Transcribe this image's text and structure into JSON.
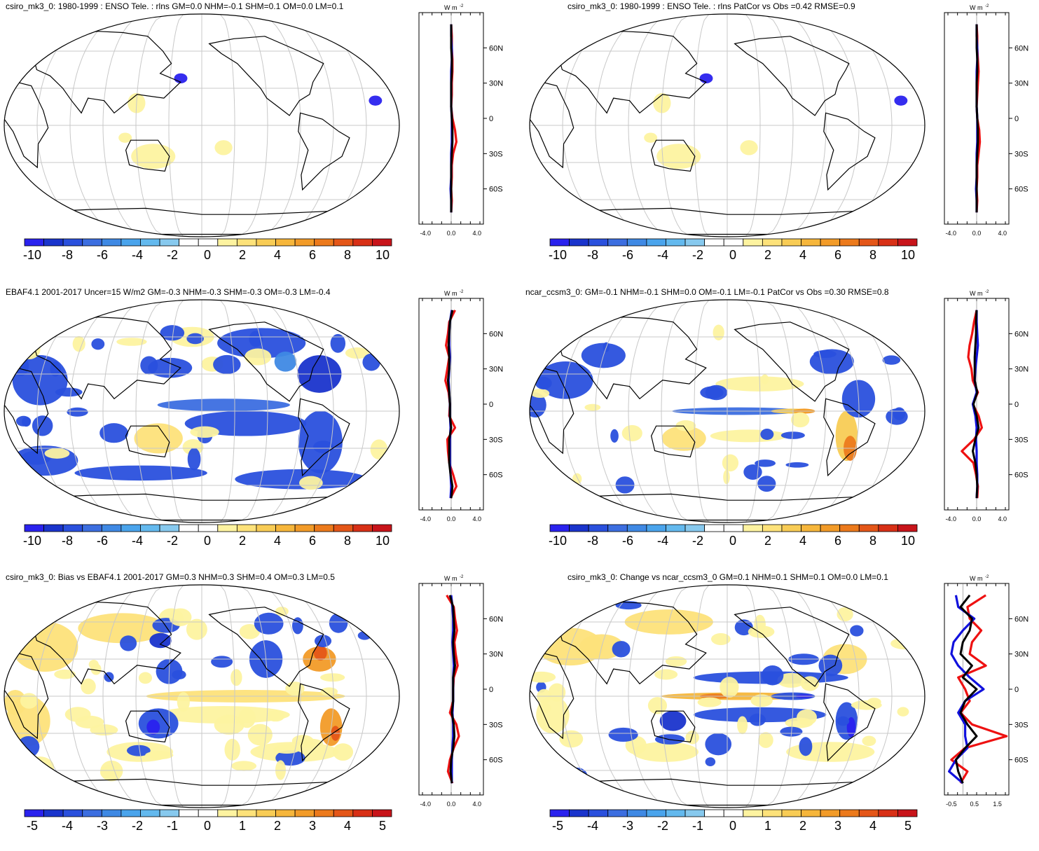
{
  "figure": {
    "zonal_unit": "W m",
    "zonal_unit_sup": "-2",
    "zonal_lat_ticks": [
      "60N",
      "30N",
      "0",
      "30S",
      "60S"
    ],
    "colors": {
      "coast": "#000000",
      "grid": "#c8c8c8",
      "obs_line": "#ee1111",
      "model_line": "#1111dd",
      "diff_line": "#000000"
    }
  },
  "panels": [
    {
      "title": "csiro_mk3_0: 1980-1999 : ENSO Tele. : rlns GM=0.0 NHM=-0.1 SHM=0.1 OM=0.0 LM=0.1",
      "colorbar": [
        "-10",
        "-8",
        "-6",
        "-4",
        "-2",
        "0",
        "2",
        "4",
        "6",
        "8",
        "10"
      ],
      "zonal_xticks": [
        "-4.0",
        "0.0",
        "4.0"
      ]
    },
    {
      "title": "csiro_mk3_0: 1980-1999 : ENSO Tele. : rlns PatCor vs Obs =0.42 RMSE=0.9",
      "colorbar": [
        "-10",
        "-8",
        "-6",
        "-4",
        "-2",
        "0",
        "2",
        "4",
        "6",
        "8",
        "10"
      ],
      "zonal_xticks": [
        "-4.0",
        "0.0",
        "4.0"
      ]
    },
    {
      "title": "EBAF4.1 2001-2017 Uncer=15 W/m2 GM=-0.3 NHM=-0.3 SHM=-0.3 OM=-0.3 LM=-0.4",
      "colorbar": [
        "-10",
        "-8",
        "-6",
        "-4",
        "-2",
        "0",
        "2",
        "4",
        "6",
        "8",
        "10"
      ],
      "zonal_xticks": [
        "-4.0",
        "0.0",
        "4.0"
      ]
    },
    {
      "title": "ncar_ccsm3_0: GM=-0.1 NHM=-0.1 SHM=0.0 OM=-0.1 LM=-0.1 PatCor vs Obs =0.30 RMSE=0.8",
      "colorbar": [
        "-10",
        "-8",
        "-6",
        "-4",
        "-2",
        "0",
        "2",
        "4",
        "6",
        "8",
        "10"
      ],
      "zonal_xticks": [
        "-4.0",
        "0.0",
        "4.0"
      ]
    },
    {
      "title": "csiro_mk3_0: Bias vs EBAF4.1 2001-2017 GM=0.3 NHM=0.3 SHM=0.4 OM=0.3 LM=0.5",
      "colorbar": [
        "-5",
        "-4",
        "-3",
        "-2",
        "-1",
        "0",
        "1",
        "2",
        "3",
        "4",
        "5"
      ],
      "zonal_xticks": [
        "-4.0",
        "0.0",
        "4.0"
      ]
    },
    {
      "title": "csiro_mk3_0: Change vs ncar_ccsm3_0 GM=0.1 NHM=0.1 SHM=0.1 OM=0.0 LM=0.1",
      "colorbar": [
        "-5",
        "-4",
        "-3",
        "-2",
        "-1",
        "0",
        "1",
        "2",
        "3",
        "4",
        "5"
      ],
      "zonal_xticks": [
        "-0.5",
        "0.5",
        "1.5"
      ]
    }
  ],
  "chart_data": [
    {
      "type": "heatmap",
      "title": "csiro_mk3_0: 1980-1999 : ENSO Tele. : rlns GM=0.0 NHM=-0.1 SHM=0.1 OM=0.0 LM=0.1",
      "colorbar_ticks": [
        -10,
        -8,
        -6,
        -4,
        -2,
        0,
        2,
        4,
        6,
        8,
        10
      ],
      "zonal_profile": {
        "lat_ticks": [
          "60N",
          "30N",
          "0",
          "30S",
          "60S"
        ],
        "x_ticks": [
          -4.0,
          0.0,
          4.0
        ],
        "xlim": [
          -5,
          5
        ],
        "lat": [
          80,
          70,
          60,
          50,
          40,
          30,
          20,
          10,
          0,
          -10,
          -20,
          -30,
          -40,
          -50,
          -60,
          -70,
          -80
        ],
        "series": [
          {
            "values": [
              0.0,
              0.1,
              0.1,
              0.2,
              0.2,
              0.1,
              0.1,
              0.0,
              0.2,
              0.6,
              0.8,
              0.3,
              0.1,
              0.1,
              0.0,
              0.1,
              0.0
            ]
          },
          {
            "values": [
              0.0,
              0.0,
              0.1,
              0.1,
              0.0,
              0.0,
              0.0,
              0.0,
              0.1,
              0.1,
              0.1,
              0.0,
              0.0,
              0.0,
              -0.1,
              0.0,
              0.0
            ]
          },
          {
            "values": [
              0.0,
              0.0,
              0.0,
              0.1,
              0.1,
              0.0,
              0.0,
              0.0,
              0.1,
              0.2,
              0.2,
              0.1,
              0.0,
              0.0,
              0.0,
              0.0,
              0.0
            ]
          }
        ]
      }
    },
    {
      "type": "heatmap",
      "title": "csiro_mk3_0: 1980-1999 : ENSO Tele. : rlns PatCor vs Obs =0.42 RMSE=0.9",
      "colorbar_ticks": [
        -10,
        -8,
        -6,
        -4,
        -2,
        0,
        2,
        4,
        6,
        8,
        10
      ],
      "zonal_profile": {
        "lat_ticks": [
          "60N",
          "30N",
          "0",
          "30S",
          "60S"
        ],
        "x_ticks": [
          -4.0,
          0.0,
          4.0
        ],
        "xlim": [
          -5,
          5
        ],
        "lat": [
          80,
          70,
          60,
          50,
          40,
          30,
          20,
          10,
          0,
          -10,
          -20,
          -30,
          -40,
          -50,
          -60,
          -70,
          -80
        ],
        "series": [
          {
            "values": [
              0.0,
              0.1,
              0.1,
              0.2,
              0.3,
              0.2,
              0.1,
              0.0,
              0.1,
              0.4,
              0.5,
              0.3,
              0.1,
              0.1,
              0.0,
              0.1,
              0.0
            ]
          },
          {
            "values": [
              0.0,
              0.0,
              0.1,
              0.1,
              0.0,
              0.0,
              0.0,
              0.0,
              0.1,
              0.1,
              0.1,
              0.0,
              0.0,
              0.0,
              -0.1,
              0.0,
              0.0
            ]
          },
          {
            "values": [
              0.0,
              0.0,
              0.0,
              0.1,
              0.1,
              0.0,
              0.0,
              0.0,
              0.1,
              0.2,
              0.2,
              0.1,
              0.0,
              0.0,
              0.0,
              0.0,
              0.0
            ]
          }
        ]
      }
    },
    {
      "type": "heatmap",
      "title": "EBAF4.1 2001-2017 Uncer=15 W/m2 GM=-0.3 NHM=-0.3 SHM=-0.3 OM=-0.3 LM=-0.4",
      "colorbar_ticks": [
        -10,
        -8,
        -6,
        -4,
        -2,
        0,
        2,
        4,
        6,
        8,
        10
      ],
      "zonal_profile": {
        "lat_ticks": [
          "60N",
          "30N",
          "0",
          "30S",
          "60S"
        ],
        "x_ticks": [
          -4.0,
          0.0,
          4.0
        ],
        "xlim": [
          -5,
          5
        ],
        "lat": [
          80,
          70,
          60,
          50,
          40,
          30,
          20,
          10,
          0,
          -10,
          -20,
          -30,
          -40,
          -50,
          -60,
          -70,
          -80
        ],
        "series": [
          {
            "values": [
              0.6,
              -0.3,
              -0.5,
              -0.8,
              -0.3,
              -0.6,
              -0.9,
              -0.4,
              -0.2,
              -0.3,
              0.6,
              -0.6,
              -0.5,
              -0.3,
              0.3,
              0.8,
              -0.1
            ]
          },
          {
            "values": [
              0.1,
              -0.2,
              -0.3,
              -0.3,
              -0.2,
              -0.3,
              -0.4,
              -0.3,
              -0.2,
              -0.2,
              -0.1,
              -0.2,
              -0.2,
              -0.2,
              -0.1,
              0.0,
              -0.1
            ]
          },
          {
            "values": [
              0.2,
              -0.2,
              -0.3,
              -0.4,
              -0.3,
              -0.3,
              -0.5,
              -0.3,
              -0.2,
              -0.2,
              0.0,
              -0.3,
              -0.3,
              -0.3,
              -0.1,
              0.2,
              0.0
            ]
          }
        ]
      }
    },
    {
      "type": "heatmap",
      "title": "ncar_ccsm3_0: GM=-0.1 NHM=-0.1 SHM=0.0 OM=-0.1 LM=-0.1 PatCor vs Obs =0.30 RMSE=0.8",
      "colorbar_ticks": [
        -10,
        -8,
        -6,
        -4,
        -2,
        0,
        2,
        4,
        6,
        8,
        10
      ],
      "zonal_profile": {
        "lat_ticks": [
          "60N",
          "30N",
          "0",
          "30S",
          "60S"
        ],
        "x_ticks": [
          -4.0,
          0.0,
          4.0
        ],
        "xlim": [
          -5,
          5
        ],
        "lat": [
          80,
          70,
          60,
          50,
          40,
          30,
          20,
          10,
          0,
          -10,
          -20,
          -30,
          -40,
          -50,
          -60,
          -70,
          -80
        ],
        "series": [
          {
            "values": [
              0.0,
              -0.4,
              -0.7,
              -1.1,
              -1.3,
              -0.8,
              -0.6,
              0.2,
              -0.6,
              0.3,
              0.8,
              -0.4,
              -2.3,
              -0.5,
              -0.1,
              0.2,
              0.1
            ]
          },
          {
            "values": [
              0.0,
              0.0,
              0.1,
              0.2,
              0.0,
              -0.2,
              -0.3,
              0.0,
              -0.6,
              -0.2,
              0.0,
              -0.1,
              0.0,
              0.0,
              0.1,
              0.1,
              0.0
            ]
          },
          {
            "values": [
              0.0,
              -0.1,
              -0.1,
              -0.2,
              -0.3,
              -0.3,
              -0.3,
              0.1,
              -0.5,
              0.0,
              0.3,
              -0.2,
              -0.6,
              -0.2,
              0.0,
              0.1,
              0.0
            ]
          }
        ]
      }
    },
    {
      "type": "heatmap",
      "title": "csiro_mk3_0: Bias vs EBAF4.1 2001-2017 GM=0.3 NHM=0.3 SHM=0.4 OM=0.3 LM=0.5",
      "colorbar_ticks": [
        -5,
        -4,
        -3,
        -2,
        -1,
        0,
        1,
        2,
        3,
        4,
        5
      ],
      "zonal_profile": {
        "lat_ticks": [
          "60N",
          "30N",
          "0",
          "30S",
          "60S"
        ],
        "x_ticks": [
          -4.0,
          0.0,
          4.0
        ],
        "xlim": [
          -5,
          5
        ],
        "lat": [
          80,
          70,
          60,
          50,
          40,
          30,
          20,
          10,
          0,
          -10,
          -20,
          -30,
          -40,
          -50,
          -60,
          -70,
          -80
        ],
        "series": [
          {
            "values": [
              -0.7,
              0.4,
              0.6,
              0.9,
              0.5,
              0.7,
              1.0,
              0.4,
              0.3,
              0.3,
              -0.2,
              0.8,
              1.2,
              0.4,
              -0.2,
              -0.5,
              0.2
            ]
          },
          {
            "values": [
              0.0,
              0.2,
              0.3,
              0.3,
              0.2,
              0.3,
              0.4,
              0.3,
              0.3,
              0.3,
              0.2,
              0.3,
              0.3,
              0.2,
              0.1,
              0.1,
              0.1
            ]
          },
          {
            "values": [
              -0.2,
              0.3,
              0.4,
              0.5,
              0.3,
              0.4,
              0.6,
              0.3,
              0.3,
              0.3,
              0.1,
              0.4,
              0.5,
              0.3,
              0.0,
              -0.1,
              0.1
            ]
          }
        ]
      }
    },
    {
      "type": "heatmap",
      "title": "csiro_mk3_0: Change vs ncar_ccsm3_0 GM=0.1 NHM=0.1 SHM=0.1 OM=0.0 LM=0.1",
      "colorbar_ticks": [
        -5,
        -4,
        -3,
        -2,
        -1,
        0,
        1,
        2,
        3,
        4,
        5
      ],
      "zonal_profile": {
        "lat_ticks": [
          "60N",
          "30N",
          "0",
          "30S",
          "60S"
        ],
        "x_ticks": [
          -0.5,
          0.5,
          1.5
        ],
        "xlim": [
          -0.8,
          2.0
        ],
        "lat": [
          80,
          70,
          60,
          50,
          40,
          30,
          20,
          10,
          0,
          -10,
          -20,
          -30,
          -40,
          -50,
          -60,
          -70,
          -80
        ],
        "series": [
          {
            "values": [
              1.0,
              0.2,
              0.3,
              0.8,
              0.4,
              0.3,
              1.0,
              -0.2,
              0.1,
              0.3,
              -0.1,
              0.4,
              1.9,
              0.1,
              -0.5,
              0.2,
              -0.1
            ]
          },
          {
            "values": [
              -0.3,
              -0.2,
              0.5,
              0.0,
              -0.4,
              -0.5,
              -0.2,
              0.3,
              0.9,
              0.1,
              -0.2,
              0.1,
              0.1,
              0.2,
              -0.3,
              -0.6,
              0.0
            ]
          },
          {
            "values": [
              0.3,
              -0.1,
              0.4,
              0.3,
              0.0,
              -0.1,
              0.4,
              0.0,
              0.6,
              0.1,
              -0.1,
              0.2,
              0.6,
              0.1,
              -0.3,
              -0.2,
              0.0
            ]
          }
        ]
      }
    }
  ]
}
